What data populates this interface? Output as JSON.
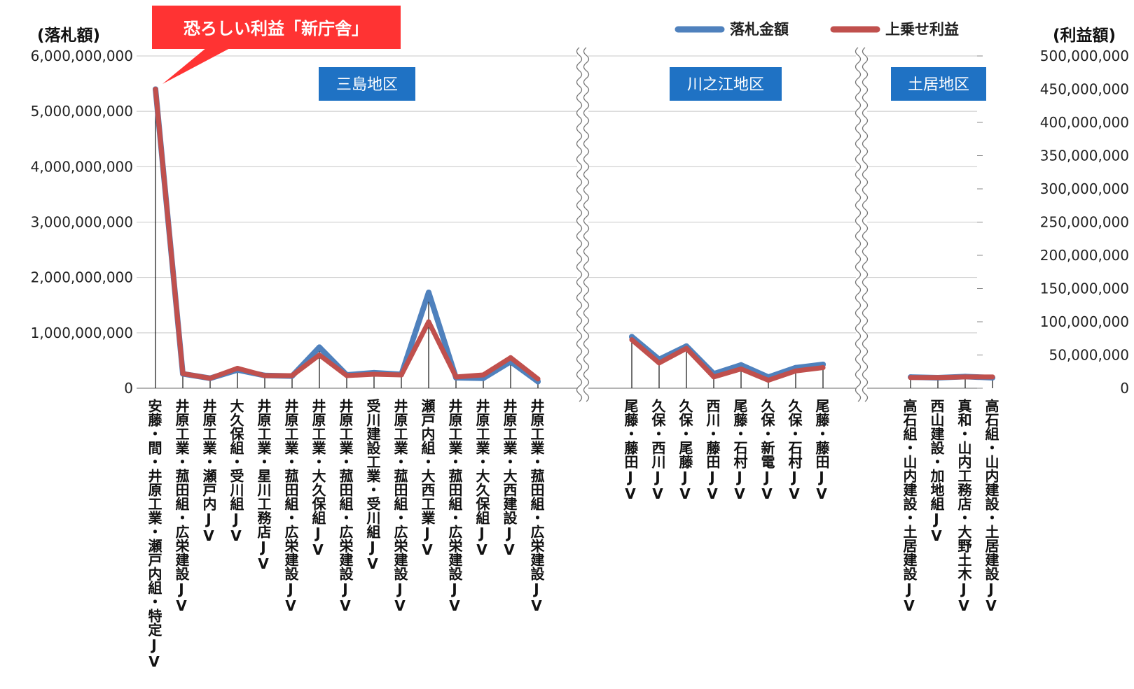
{
  "chart_data": {
    "type": "line",
    "ylabel_left": "(落札額)",
    "ylabel_right": "(利益額)",
    "ylim_left": [
      0,
      6000000000
    ],
    "ylim_right": [
      0,
      500000000
    ],
    "yticks_left": [
      "0",
      "1,000,000,000",
      "2,000,000,000",
      "3,000,000,000",
      "4,000,000,000",
      "5,000,000,000",
      "6,000,000,000"
    ],
    "yticks_right": [
      "0",
      "50,000,000",
      "100,000,000",
      "150,000,000",
      "200,000,000",
      "250,000,000",
      "300,000,000",
      "350,000,000",
      "400,000,000",
      "450,000,000",
      "500,000,000"
    ],
    "grid": true,
    "legend_position": "top-right",
    "annotation": "恐ろしい利益「新庁舎」",
    "series_names": [
      "落札金額",
      "上乗せ利益"
    ],
    "colors": {
      "bid": "#4f81bd",
      "profit": "#c0504d",
      "region_box": "#1f72c4",
      "callout": "#ff3333"
    },
    "regions": [
      {
        "name": "三島地区",
        "categories": [
          "安藤・間・井原工業・瀬戸内組・特定JV",
          "井原工業・菰田組・広栄建設JV",
          "井原工業・瀬戸内JV",
          "大久保組・受川組JV",
          "井原工業・星川工務店JV",
          "井原工業・菰田組・広栄建設JV",
          "井原工業・大久保組JV",
          "井原工業・菰田組・広栄建設JV",
          "受川建設工業・受川組JV",
          "井原工業・菰田組・広栄建設JV",
          "瀬戸内組・大西工業JV",
          "井原工業・菰田組・広栄建設JV",
          "井原工業・大久保組JV",
          "井原工業・大西建設JV",
          "井原工業・菰田組・広栄建設JV"
        ],
        "bid": [
          5400000000,
          260000000,
          180000000,
          330000000,
          230000000,
          220000000,
          740000000,
          240000000,
          280000000,
          250000000,
          1730000000,
          190000000,
          180000000,
          480000000,
          120000000
        ],
        "profit": [
          450000000,
          22000000,
          15000000,
          30000000,
          19000000,
          19000000,
          50000000,
          19000000,
          21000000,
          20000000,
          100000000,
          17000000,
          20000000,
          46000000,
          14000000
        ]
      },
      {
        "name": "川之江地区",
        "categories": [
          "尾藤・藤田JV",
          "久保・西川JV",
          "久保・尾藤JV",
          "西川・藤田JV",
          "尾藤・石村JV",
          "久保・新電JV",
          "久保・石村JV",
          "尾藤・藤田JV"
        ],
        "bid": [
          930000000,
          520000000,
          760000000,
          260000000,
          420000000,
          200000000,
          370000000,
          430000000
        ],
        "profit": [
          73000000,
          38000000,
          60000000,
          17000000,
          29000000,
          12000000,
          26000000,
          31000000
        ]
      },
      {
        "name": "土居地区",
        "categories": [
          "高石組・山内建設・土居建設JV",
          "西山建設・加地組JV",
          "真和・山内工務店・大野土木JV",
          "高石組・山内建設・土居建設JV"
        ],
        "bid": [
          200000000,
          190000000,
          210000000,
          190000000
        ],
        "profit": [
          16000000,
          16000000,
          17000000,
          17000000
        ]
      }
    ]
  }
}
